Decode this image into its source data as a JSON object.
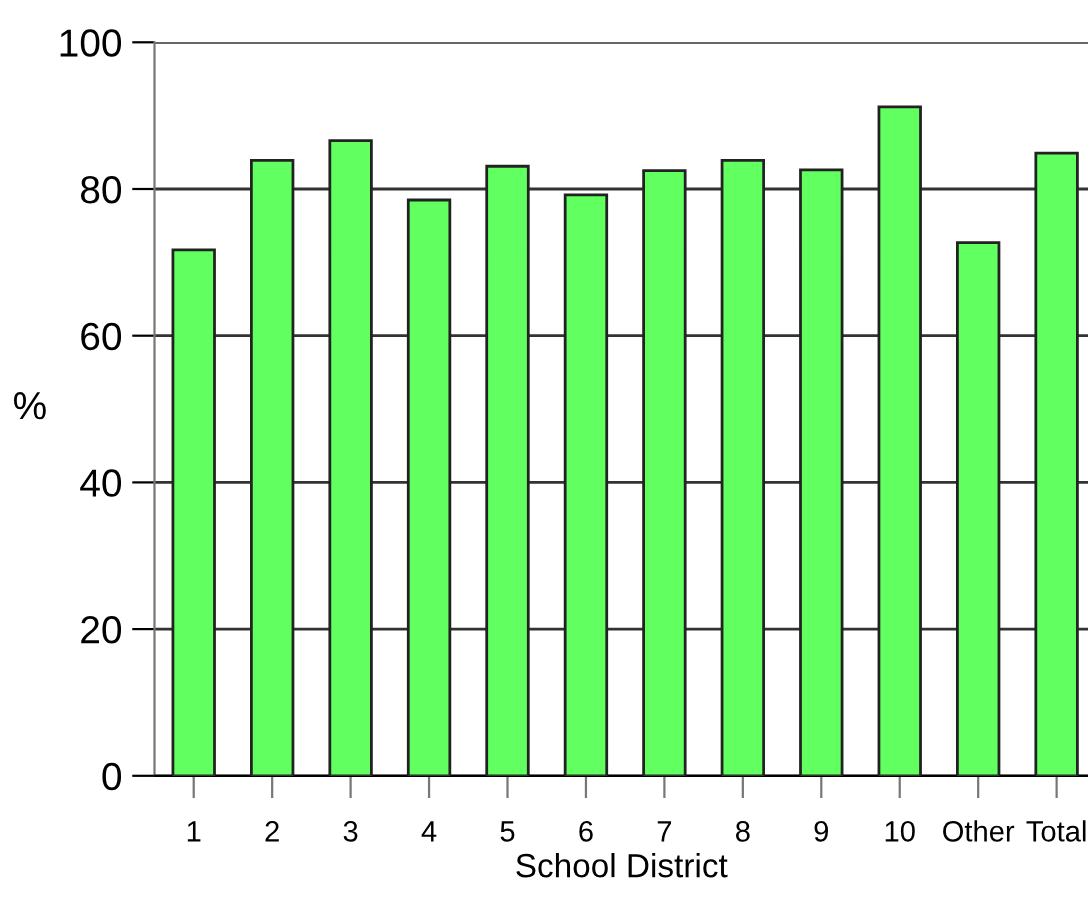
{
  "chart_data": {
    "type": "bar",
    "xlabel": "School District",
    "ylabel": "%",
    "categories": [
      "1",
      "2",
      "3",
      "4",
      "5",
      "6",
      "7",
      "8",
      "9",
      "10",
      "Other",
      "Total"
    ],
    "values": [
      71.7,
      83.9,
      86.6,
      78.5,
      83.1,
      79.2,
      82.5,
      83.9,
      82.6,
      91.2,
      72.7,
      84.9
    ],
    "color": "#61ff5f",
    "ylim": [
      0,
      100
    ],
    "yticks": [
      0,
      20,
      40,
      60,
      80,
      100
    ],
    "grid": "y"
  }
}
